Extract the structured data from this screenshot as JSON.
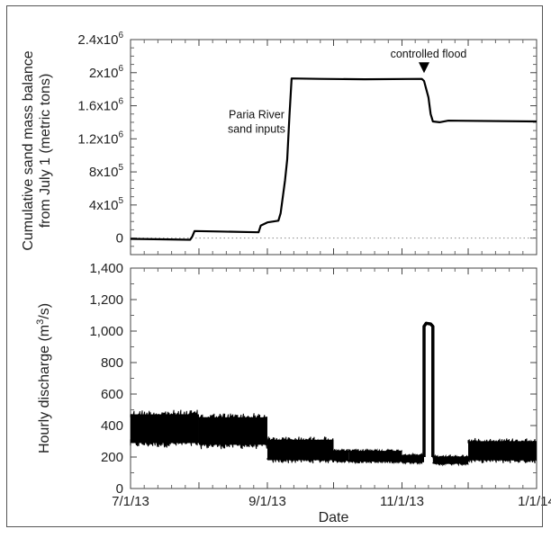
{
  "chart_data": [
    {
      "type": "line",
      "name": "top-panel",
      "ylabel_lines": [
        "Cumulative sand mass balance",
        "from July 1 (metric tons)"
      ],
      "xlim": [
        "2013-07-01",
        "2014-01-01"
      ],
      "ylim": [
        -200000,
        2400000
      ],
      "yticks": [
        {
          "value": 0,
          "label": "0"
        },
        {
          "value": 400000,
          "base": "4x10",
          "exp": "5"
        },
        {
          "value": 800000,
          "base": "8x10",
          "exp": "5"
        },
        {
          "value": 1200000,
          "base": "1.2x10",
          "exp": "6"
        },
        {
          "value": 1600000,
          "base": "1.6x10",
          "exp": "6"
        },
        {
          "value": 2000000,
          "base": "2x10",
          "exp": "6"
        },
        {
          "value": 2400000,
          "base": "2.4x10",
          "exp": "6"
        }
      ],
      "zero_line": "dotted",
      "annotations": [
        {
          "text_lines": [
            "Paria River",
            "sand inputs"
          ],
          "x": "2013-09-01",
          "y": 1450000
        },
        {
          "text": "controlled flood",
          "x": "2013-11-11",
          "y": 2180000,
          "arrow": true
        }
      ],
      "series": [
        {
          "points": [
            [
              "2013-07-01",
              -10000
            ],
            [
              "2013-07-15",
              -15000
            ],
            [
              "2013-07-28",
              -20000
            ],
            [
              "2013-07-29",
              20000
            ],
            [
              "2013-07-30",
              85000
            ],
            [
              "2013-08-10",
              80000
            ],
            [
              "2013-08-28",
              70000
            ],
            [
              "2013-08-29",
              150000
            ],
            [
              "2013-09-01",
              190000
            ],
            [
              "2013-09-06",
              210000
            ],
            [
              "2013-09-07",
              300000
            ],
            [
              "2013-09-09",
              700000
            ],
            [
              "2013-09-10",
              950000
            ],
            [
              "2013-09-11",
              1480000
            ],
            [
              "2013-09-12",
              1930000
            ],
            [
              "2013-09-25",
              1925000
            ],
            [
              "2013-10-15",
              1920000
            ],
            [
              "2013-11-10",
              1925000
            ],
            [
              "2013-11-11",
              1900000
            ],
            [
              "2013-11-13",
              1700000
            ],
            [
              "2013-11-14",
              1500000
            ],
            [
              "2013-11-15",
              1410000
            ],
            [
              "2013-11-18",
              1400000
            ],
            [
              "2013-11-22",
              1420000
            ],
            [
              "2014-01-01",
              1410000
            ]
          ]
        }
      ]
    },
    {
      "type": "line",
      "name": "bottom-panel",
      "xlabel": "Date",
      "ylabel_main": "Hourly discharge (m",
      "ylabel_sup": "3",
      "ylabel_end": "/s)",
      "xlim": [
        "2013-07-01",
        "2014-01-01"
      ],
      "ylim": [
        0,
        1400
      ],
      "xticks": [
        {
          "value": "2013-07-01",
          "label": "7/1/13"
        },
        {
          "value": "2013-09-01",
          "label": "9/1/13"
        },
        {
          "value": "2013-11-01",
          "label": "11/1/13"
        },
        {
          "value": "2014-01-01",
          "label": "1/1/14"
        }
      ],
      "yticks": [
        {
          "value": 0,
          "label": "0"
        },
        {
          "value": 200,
          "label": "200"
        },
        {
          "value": 400,
          "label": "400"
        },
        {
          "value": 600,
          "label": "600"
        },
        {
          "value": 800,
          "label": "800"
        },
        {
          "value": 1000,
          "label": "1,000"
        },
        {
          "value": 1200,
          "label": "1,200"
        },
        {
          "value": 1400,
          "label": "1,400"
        }
      ],
      "series": [
        {
          "bands": [
            {
              "start": "2013-07-01",
              "end": "2013-08-01",
              "low": 260,
              "high": 500
            },
            {
              "start": "2013-08-01",
              "end": "2013-09-01",
              "low": 250,
              "high": 480
            },
            {
              "start": "2013-09-01",
              "end": "2013-10-01",
              "low": 160,
              "high": 330
            },
            {
              "start": "2013-10-01",
              "end": "2013-10-08",
              "low": 165,
              "high": 250
            },
            {
              "start": "2013-10-08",
              "end": "2013-11-01",
              "low": 160,
              "high": 250
            },
            {
              "start": "2013-11-01",
              "end": "2013-11-11",
              "low": 160,
              "high": 220
            },
            {
              "start": "2013-11-15",
              "end": "2013-12-01",
              "low": 150,
              "high": 210
            },
            {
              "start": "2013-12-01",
              "end": "2014-01-01",
              "low": 160,
              "high": 320
            }
          ],
          "flood_points": [
            [
              "2013-11-11",
              200
            ],
            [
              "2013-11-11",
              1030
            ],
            [
              "2013-11-12",
              1050
            ],
            [
              "2013-11-14",
              1045
            ],
            [
              "2013-11-15",
              1030
            ],
            [
              "2013-11-15",
              200
            ]
          ]
        }
      ]
    }
  ]
}
